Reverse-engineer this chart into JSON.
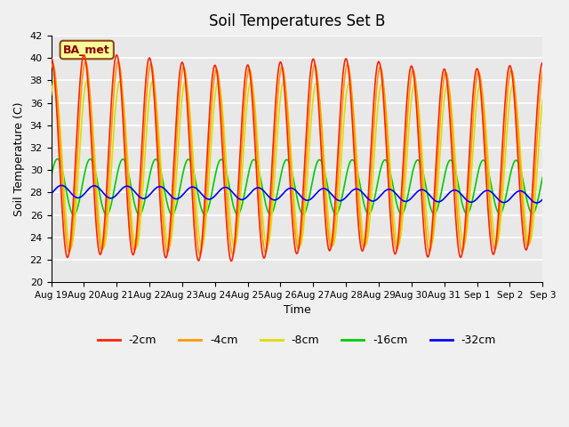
{
  "title": "Soil Temperatures Set B",
  "xlabel": "Time",
  "ylabel": "Soil Temperature (C)",
  "ylim": [
    20,
    42
  ],
  "yticks": [
    20,
    22,
    24,
    26,
    28,
    30,
    32,
    34,
    36,
    38,
    40,
    42
  ],
  "annotation": "BA_met",
  "legend_labels": [
    "-2cm",
    "-4cm",
    "-8cm",
    "-16cm",
    "-32cm"
  ],
  "colors": {
    "-2cm": "#ff2200",
    "-4cm": "#ff9900",
    "-8cm": "#dddd00",
    "-16cm": "#00cc00",
    "-32cm": "#0000ff"
  },
  "background_color": "#e8e8e8",
  "grid_color": "#ffffff",
  "n_days": 15,
  "x_tick_labels": [
    "Aug 19",
    "Aug 20",
    "Aug 21",
    "Aug 22",
    "Aug 23",
    "Aug 24",
    "Aug 25",
    "Aug 26",
    "Aug 27",
    "Aug 28",
    "Aug 29",
    "Aug 30",
    "Aug 31",
    "Sep 1",
    "Sep 2",
    "Sep 3"
  ]
}
